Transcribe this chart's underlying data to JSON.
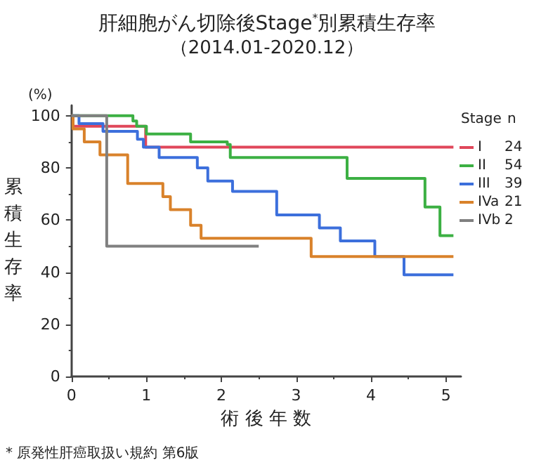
{
  "chart_data": {
    "type": "step",
    "title": "肝細胞がん切除後Stage$^{*}$別累積生存率",
    "subtitle": "（2014.01-2020.12）",
    "xlabel": "術後年数",
    "ylabel": "累積生存率",
    "legend_title": "Stage n",
    "annotations": [
      "(%)",
      "* 原発性肝癌取扱い規約 第6版"
    ],
    "xlim": [
      0,
      5.2
    ],
    "xticks": [
      0,
      1,
      2,
      3,
      4,
      5
    ],
    "ylim": [
      0,
      104
    ],
    "yticks": [
      0,
      20,
      40,
      60,
      80,
      100
    ],
    "grid": false,
    "legend": "right",
    "marker": "none",
    "line_style": "solid",
    "series": [
      {
        "name": "I 24",
        "color": "#e0475a",
        "x": [
          0,
          0.02,
          0.99,
          5.1
        ],
        "values": [
          100,
          96,
          88,
          88
        ]
      },
      {
        "name": "II 54",
        "color": "#3cb043",
        "x": [
          0,
          0.82,
          0.87,
          1.0,
          1.59,
          2.08,
          2.12,
          3.68,
          4.72,
          4.92,
          5.1
        ],
        "values": [
          100,
          98,
          96,
          93,
          90,
          89,
          84,
          76,
          65,
          54,
          54
        ]
      },
      {
        "name": "III 39",
        "color": "#3c6fdc",
        "x": [
          0,
          0.1,
          0.42,
          0.88,
          0.96,
          1.17,
          1.68,
          1.82,
          2.15,
          2.74,
          3.31,
          3.59,
          4.05,
          4.44,
          5.1
        ],
        "values": [
          100,
          97,
          94,
          91,
          88,
          84,
          80,
          75,
          71,
          62,
          57,
          52,
          46,
          39,
          39
        ]
      },
      {
        "name": "IVa 21",
        "color": "#d9822b",
        "x": [
          0,
          0.02,
          0.17,
          0.38,
          0.75,
          1.22,
          1.32,
          1.59,
          1.73,
          3.2,
          5.1
        ],
        "values": [
          100,
          95,
          90,
          85,
          74,
          69,
          64,
          58,
          53,
          46,
          46
        ]
      },
      {
        "name": "IVb 2",
        "color": "#808080",
        "x": [
          0,
          0.47,
          2.5
        ],
        "values": [
          100,
          50,
          50
        ]
      }
    ]
  }
}
